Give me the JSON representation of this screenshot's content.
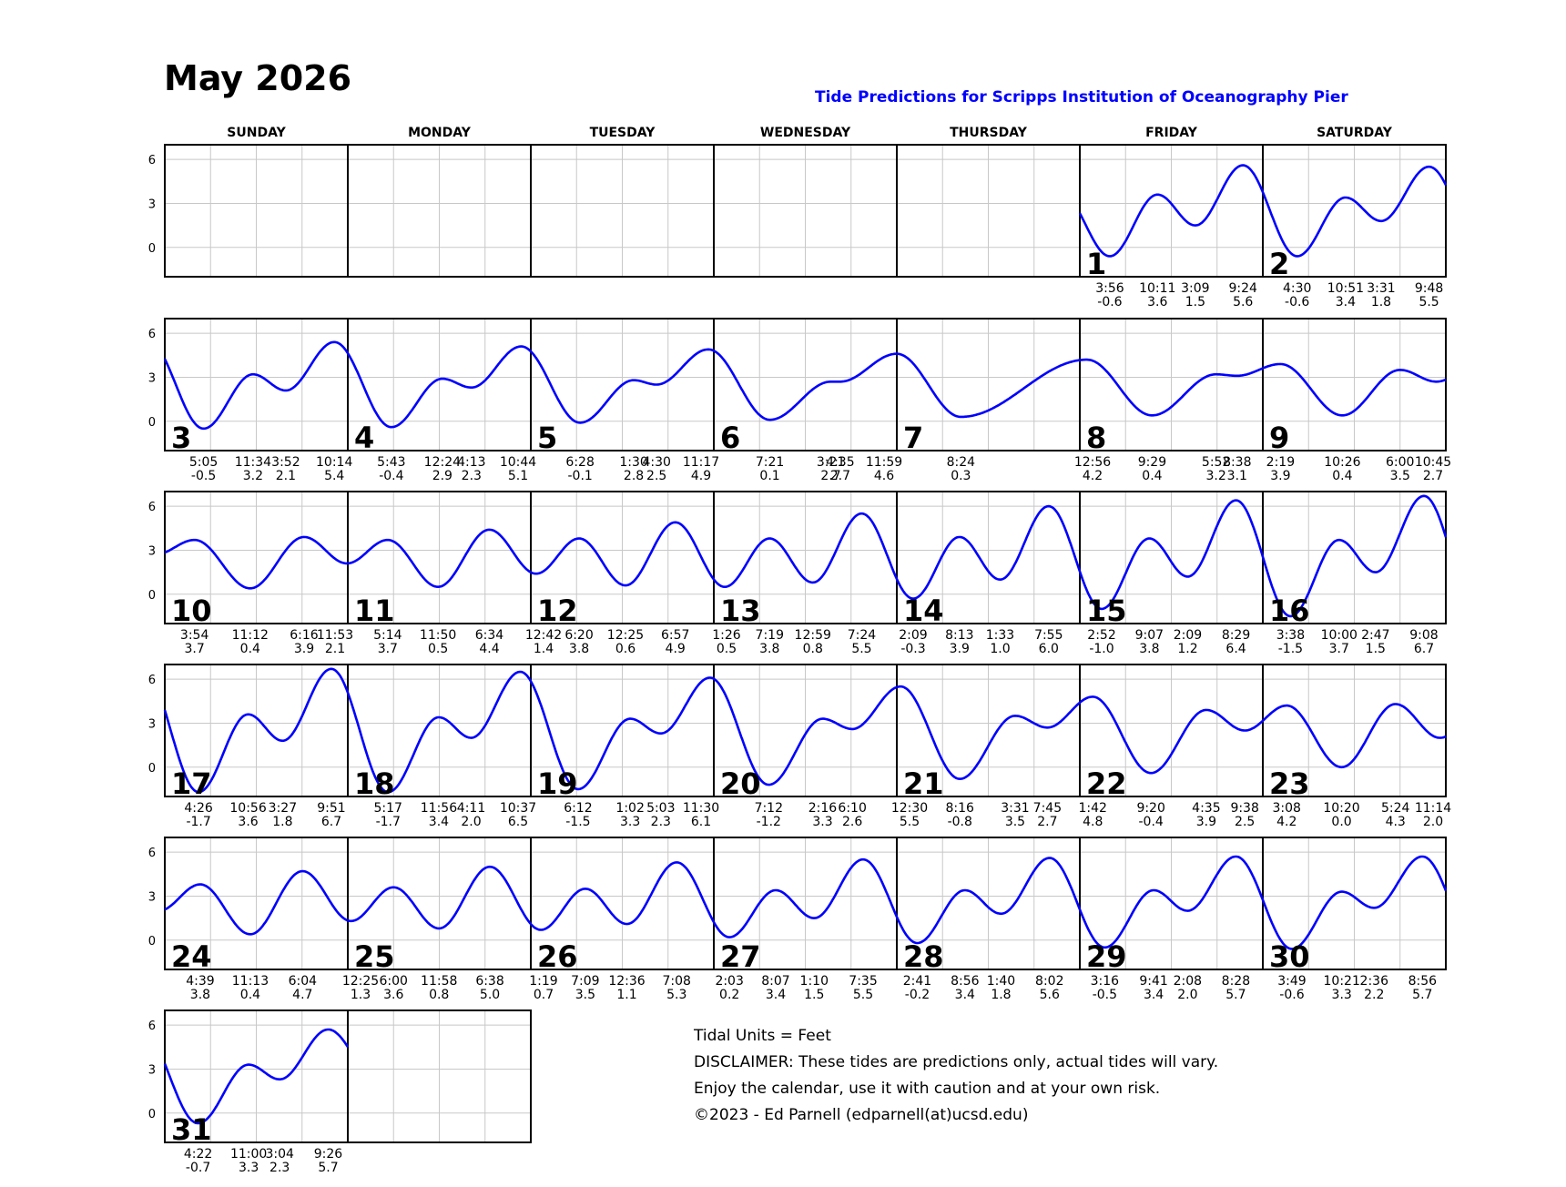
{
  "title": "May 2026",
  "subtitle": "Tide Predictions for Scripps Institution of Oceanography Pier",
  "weekdays": [
    "SUNDAY",
    "MONDAY",
    "TUESDAY",
    "WEDNESDAY",
    "THURSDAY",
    "FRIDAY",
    "SATURDAY"
  ],
  "footer": [
    "Tidal Units = Feet",
    "DISCLAIMER: These tides are predictions only, actual tides will vary.",
    "Enjoy the calendar, use it with caution and at your own risk.",
    "©2023 - Ed Parnell (edparnell(at)ucsd.edu)"
  ],
  "colors": {
    "curve": "#0000ff",
    "subtitle": "#0000ff",
    "grid": "#c8c8c8",
    "border": "#000000"
  },
  "chart_data": {
    "type": "line",
    "month": "May 2026",
    "units": "Feet",
    "ylim": [
      -2,
      7
    ],
    "yticks": [
      0,
      3,
      6
    ],
    "grid": true,
    "first_weekday": 5,
    "days": [
      {
        "day": 1,
        "tides": [
          {
            "time": "3:56",
            "height": -0.6
          },
          {
            "time": "10:11",
            "height": 3.6
          },
          {
            "time": "3:09",
            "height": 1.5
          },
          {
            "time": "9:24",
            "height": 5.6
          }
        ]
      },
      {
        "day": 2,
        "tides": [
          {
            "time": "4:30",
            "height": -0.6
          },
          {
            "time": "10:51",
            "height": 3.4
          },
          {
            "time": "3:31",
            "height": 1.8
          },
          {
            "time": "9:48",
            "height": 5.5
          }
        ]
      },
      {
        "day": 3,
        "tides": [
          {
            "time": "5:05",
            "height": -0.5
          },
          {
            "time": "11:34",
            "height": 3.2
          },
          {
            "time": "3:52",
            "height": 2.1
          },
          {
            "time": "10:14",
            "height": 5.4
          }
        ]
      },
      {
        "day": 4,
        "tides": [
          {
            "time": "5:43",
            "height": -0.4
          },
          {
            "time": "12:24",
            "height": 2.9
          },
          {
            "time": "4:13",
            "height": 2.3
          },
          {
            "time": "10:44",
            "height": 5.1
          }
        ]
      },
      {
        "day": 5,
        "tides": [
          {
            "time": "6:28",
            "height": -0.1
          },
          {
            "time": "1:30",
            "height": 2.8
          },
          {
            "time": "4:30",
            "height": 2.5
          },
          {
            "time": "11:17",
            "height": 4.9
          }
        ]
      },
      {
        "day": 6,
        "tides": [
          {
            "time": "7:21",
            "height": 0.1
          },
          {
            "time": "3:21",
            "height": 2.7
          },
          {
            "time": "4:35",
            "height": 2.7
          },
          {
            "time": "11:59",
            "height": 4.6
          }
        ]
      },
      {
        "day": 7,
        "tides": [
          {
            "time": "8:24",
            "height": 0.3
          }
        ]
      },
      {
        "day": 8,
        "tides": [
          {
            "time": "12:56",
            "height": 4.2
          },
          {
            "time": "9:29",
            "height": 0.4
          },
          {
            "time": "5:52",
            "height": 3.2
          },
          {
            "time": "8:38",
            "height": 3.1
          }
        ]
      },
      {
        "day": 9,
        "tides": [
          {
            "time": "2:19",
            "height": 3.9
          },
          {
            "time": "10:26",
            "height": 0.4
          },
          {
            "time": "6:00",
            "height": 3.5
          },
          {
            "time": "10:45",
            "height": 2.7
          }
        ]
      },
      {
        "day": 10,
        "tides": [
          {
            "time": "3:54",
            "height": 3.7
          },
          {
            "time": "11:12",
            "height": 0.4
          },
          {
            "time": "6:16",
            "height": 3.9
          },
          {
            "time": "11:53",
            "height": 2.1
          }
        ]
      },
      {
        "day": 11,
        "tides": [
          {
            "time": "5:14",
            "height": 3.7
          },
          {
            "time": "11:50",
            "height": 0.5
          },
          {
            "time": "6:34",
            "height": 4.4
          }
        ]
      },
      {
        "day": 12,
        "tides": [
          {
            "time": "12:42",
            "height": 1.4
          },
          {
            "time": "6:20",
            "height": 3.8
          },
          {
            "time": "12:25",
            "height": 0.6
          },
          {
            "time": "6:57",
            "height": 4.9
          }
        ]
      },
      {
        "day": 13,
        "tides": [
          {
            "time": "1:26",
            "height": 0.5
          },
          {
            "time": "7:19",
            "height": 3.8
          },
          {
            "time": "12:59",
            "height": 0.8
          },
          {
            "time": "7:24",
            "height": 5.5
          }
        ]
      },
      {
        "day": 14,
        "tides": [
          {
            "time": "2:09",
            "height": -0.3
          },
          {
            "time": "8:13",
            "height": 3.9
          },
          {
            "time": "1:33",
            "height": 1.0
          },
          {
            "time": "7:55",
            "height": 6.0
          }
        ]
      },
      {
        "day": 15,
        "tides": [
          {
            "time": "2:52",
            "height": -1.0
          },
          {
            "time": "9:07",
            "height": 3.8
          },
          {
            "time": "2:09",
            "height": 1.2
          },
          {
            "time": "8:29",
            "height": 6.4
          }
        ]
      },
      {
        "day": 16,
        "tides": [
          {
            "time": "3:38",
            "height": -1.5
          },
          {
            "time": "10:00",
            "height": 3.7
          },
          {
            "time": "2:47",
            "height": 1.5
          },
          {
            "time": "9:08",
            "height": 6.7
          }
        ]
      },
      {
        "day": 17,
        "tides": [
          {
            "time": "4:26",
            "height": -1.7
          },
          {
            "time": "10:56",
            "height": 3.6
          },
          {
            "time": "3:27",
            "height": 1.8
          },
          {
            "time": "9:51",
            "height": 6.7
          }
        ]
      },
      {
        "day": 18,
        "tides": [
          {
            "time": "5:17",
            "height": -1.7
          },
          {
            "time": "11:56",
            "height": 3.4
          },
          {
            "time": "4:11",
            "height": 2.0
          },
          {
            "time": "10:37",
            "height": 6.5
          }
        ]
      },
      {
        "day": 19,
        "tides": [
          {
            "time": "6:12",
            "height": -1.5
          },
          {
            "time": "1:02",
            "height": 3.3
          },
          {
            "time": "5:03",
            "height": 2.3
          },
          {
            "time": "11:30",
            "height": 6.1
          }
        ]
      },
      {
        "day": 20,
        "tides": [
          {
            "time": "7:12",
            "height": -1.2
          },
          {
            "time": "2:16",
            "height": 3.3
          },
          {
            "time": "6:10",
            "height": 2.6
          }
        ]
      },
      {
        "day": 21,
        "tides": [
          {
            "time": "12:30",
            "height": 5.5
          },
          {
            "time": "8:16",
            "height": -0.8
          },
          {
            "time": "3:31",
            "height": 3.5
          },
          {
            "time": "7:45",
            "height": 2.7
          }
        ]
      },
      {
        "day": 22,
        "tides": [
          {
            "time": "1:42",
            "height": 4.8
          },
          {
            "time": "9:20",
            "height": -0.4
          },
          {
            "time": "4:35",
            "height": 3.9
          },
          {
            "time": "9:38",
            "height": 2.5
          }
        ]
      },
      {
        "day": 23,
        "tides": [
          {
            "time": "3:08",
            "height": 4.2
          },
          {
            "time": "10:20",
            "height": 0.0
          },
          {
            "time": "5:24",
            "height": 4.3
          },
          {
            "time": "11:14",
            "height": 2.0
          }
        ]
      },
      {
        "day": 24,
        "tides": [
          {
            "time": "4:39",
            "height": 3.8
          },
          {
            "time": "11:13",
            "height": 0.4
          },
          {
            "time": "6:04",
            "height": 4.7
          }
        ]
      },
      {
        "day": 25,
        "tides": [
          {
            "time": "12:25",
            "height": 1.3
          },
          {
            "time": "6:00",
            "height": 3.6
          },
          {
            "time": "11:58",
            "height": 0.8
          },
          {
            "time": "6:38",
            "height": 5.0
          }
        ]
      },
      {
        "day": 26,
        "tides": [
          {
            "time": "1:19",
            "height": 0.7
          },
          {
            "time": "7:09",
            "height": 3.5
          },
          {
            "time": "12:36",
            "height": 1.1
          },
          {
            "time": "7:08",
            "height": 5.3
          }
        ]
      },
      {
        "day": 27,
        "tides": [
          {
            "time": "2:03",
            "height": 0.2
          },
          {
            "time": "8:07",
            "height": 3.4
          },
          {
            "time": "1:10",
            "height": 1.5
          },
          {
            "time": "7:35",
            "height": 5.5
          }
        ]
      },
      {
        "day": 28,
        "tides": [
          {
            "time": "2:41",
            "height": -0.2
          },
          {
            "time": "8:56",
            "height": 3.4
          },
          {
            "time": "1:40",
            "height": 1.8
          },
          {
            "time": "8:02",
            "height": 5.6
          }
        ]
      },
      {
        "day": 29,
        "tides": [
          {
            "time": "3:16",
            "height": -0.5
          },
          {
            "time": "9:41",
            "height": 3.4
          },
          {
            "time": "2:08",
            "height": 2.0
          },
          {
            "time": "8:28",
            "height": 5.7
          }
        ]
      },
      {
        "day": 30,
        "tides": [
          {
            "time": "3:49",
            "height": -0.6
          },
          {
            "time": "10:21",
            "height": 3.3
          },
          {
            "time": "2:36",
            "height": 2.2
          },
          {
            "time": "8:56",
            "height": 5.7
          }
        ]
      },
      {
        "day": 31,
        "tides": [
          {
            "time": "4:22",
            "height": -0.7
          },
          {
            "time": "11:00",
            "height": 3.3
          },
          {
            "time": "3:04",
            "height": 2.3
          },
          {
            "time": "9:26",
            "height": 5.7
          }
        ]
      }
    ]
  }
}
